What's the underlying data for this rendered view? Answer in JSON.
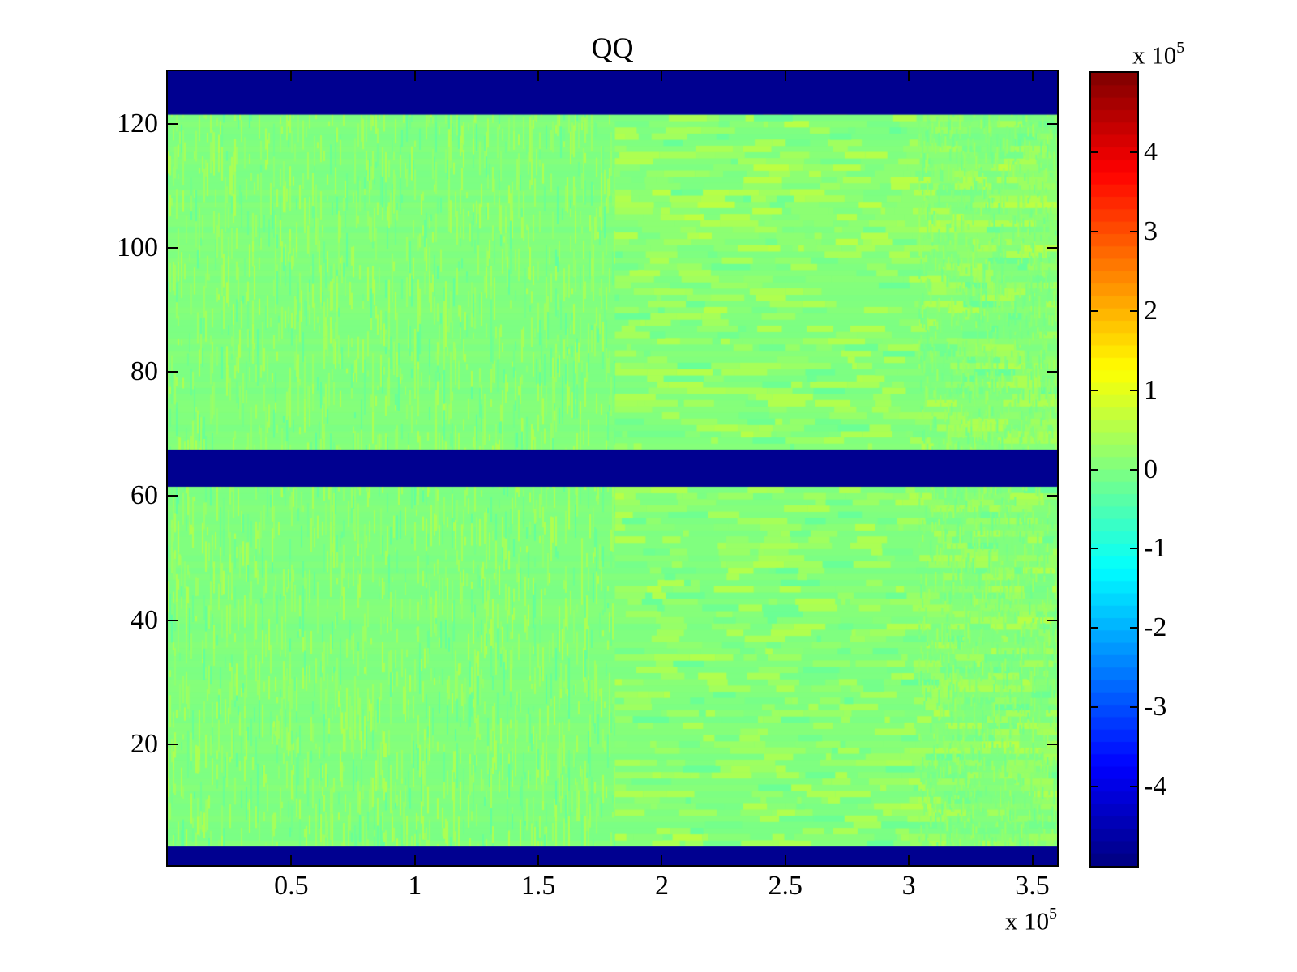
{
  "chart_data": {
    "type": "heatmap",
    "title": "QQ",
    "x_axis": {
      "ticks_1e5": [
        0.5,
        1,
        1.5,
        2,
        2.5,
        3,
        3.5
      ],
      "tick_labels": [
        "0.5",
        "1",
        "1.5",
        "2",
        "2.5",
        "3",
        "3.5"
      ],
      "range_1e5": [
        0,
        3.6
      ],
      "exponent_prefix": "x 10",
      "exponent_power": "5"
    },
    "y_axis": {
      "ticks": [
        20,
        40,
        60,
        80,
        100,
        120
      ],
      "tick_labels": [
        "20",
        "40",
        "60",
        "80",
        "100",
        "120"
      ],
      "range": [
        0.5,
        128.5
      ],
      "rows": 128
    },
    "colorbar": {
      "ticks_1e5": [
        4,
        3,
        2,
        1,
        0,
        -1,
        -2,
        -3,
        -4
      ],
      "tick_labels": [
        "4",
        "3",
        "2",
        "1",
        "0",
        "-1",
        "-2",
        "-3",
        "-4"
      ],
      "clim_1e5": [
        -5,
        5
      ],
      "colormap": "jet",
      "levels": 64,
      "exponent_prefix": "x 10",
      "exponent_power": "5"
    },
    "bands_rows": [
      [
        1,
        3
      ],
      [
        62,
        67
      ],
      [
        122,
        128
      ]
    ],
    "band_value_1e5": -5,
    "base_value_1e5": 0,
    "noise_amplitude_1e5": 0.35,
    "regions": [
      {
        "x_range_1e5": [
          0,
          1.81
        ],
        "texture": "fine-vertical-stripes"
      },
      {
        "x_range_1e5": [
          1.81,
          3.04
        ],
        "texture": "horizontal-runs"
      },
      {
        "x_range_1e5": [
          3.04,
          3.6
        ],
        "texture": "dense-mixed"
      }
    ],
    "colors": {
      "band_navy": "#000090",
      "base_green": "#80ff80",
      "stripe_light": "#9eff61",
      "stripe_dark": "#61ff9e",
      "cbar_top": "#880000",
      "cbar_bottom": "#000088"
    },
    "seed": 1234
  }
}
